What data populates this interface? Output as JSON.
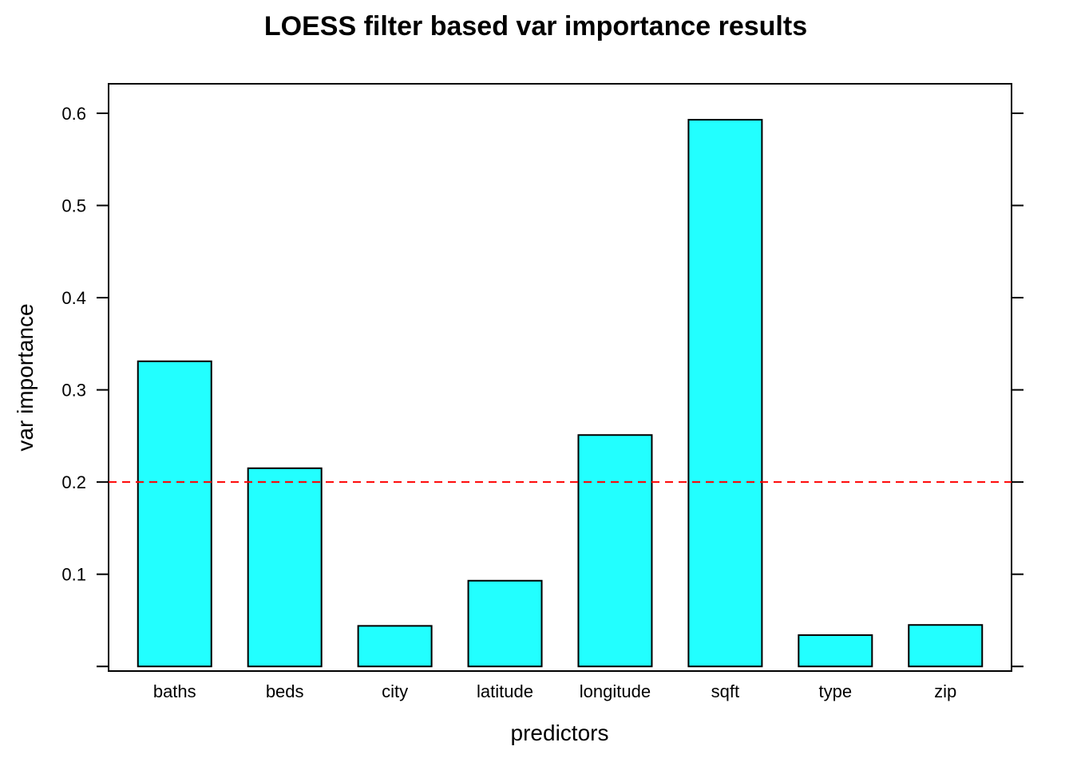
{
  "chart_data": {
    "type": "bar",
    "title": "LOESS filter based var importance results",
    "xlabel": "predictors",
    "ylabel": "var importance",
    "categories": [
      "baths",
      "beds",
      "city",
      "latitude",
      "longitude",
      "sqft",
      "type",
      "zip"
    ],
    "values": [
      0.331,
      0.215,
      0.044,
      0.093,
      0.251,
      0.593,
      0.034,
      0.045
    ],
    "ylim": [
      -0.005,
      0.632
    ],
    "yticks": [
      0.0,
      0.1,
      0.2,
      0.3,
      0.4,
      0.5,
      0.6
    ],
    "ytick_labels": [
      "",
      "0.1",
      "0.2",
      "0.3",
      "0.4",
      "0.5",
      "0.6"
    ],
    "reference_line": {
      "value": 0.2,
      "style": "dashed",
      "color": "#ff0000"
    },
    "bar_color": "#22ffff",
    "grid": false,
    "legend": "none"
  }
}
